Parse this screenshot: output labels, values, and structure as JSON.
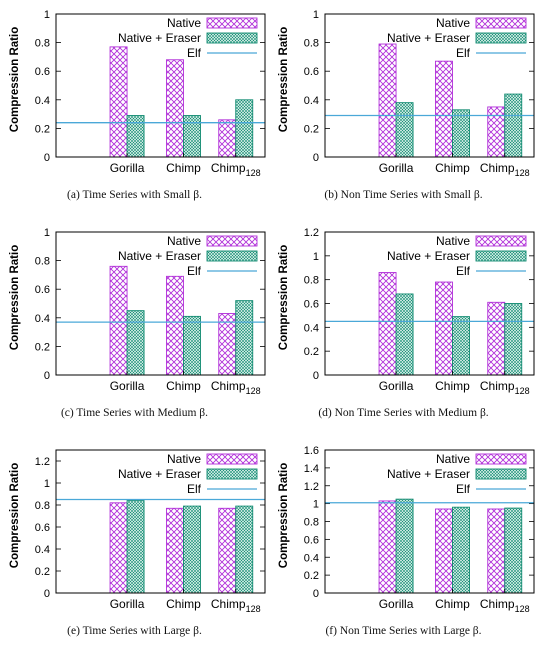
{
  "figure": {
    "colors": {
      "native": "#b12fd9",
      "eraser": "#0f8a70",
      "eraser_fill": "#e6f6f1",
      "elf": "#4aa8d8"
    }
  },
  "chart_data": [
    {
      "type": "bar",
      "caption": "(a)  Time Series with Small β.",
      "categories": [
        "Gorilla",
        "Chimp",
        "Chimp128"
      ],
      "ylabel": "Compression Ratio",
      "ylim": [
        0,
        1
      ],
      "yticks": [
        0,
        0.2,
        0.4,
        0.6,
        0.8,
        1
      ],
      "ytick_labels": [
        "0",
        "0.2",
        "0.4",
        "0.6",
        "0.8",
        "1"
      ],
      "legend": "top-right",
      "series": [
        {
          "name": "Native",
          "values": [
            0.77,
            0.68,
            0.26
          ]
        },
        {
          "name": "Native + Eraser",
          "values": [
            0.29,
            0.29,
            0.4
          ]
        },
        {
          "name": "Elf",
          "value": 0.24
        }
      ]
    },
    {
      "type": "bar",
      "caption": "(b)  Non Time Series with Small β.",
      "categories": [
        "Gorilla",
        "Chimp",
        "Chimp128"
      ],
      "ylabel": "Compression Ratio",
      "ylim": [
        0,
        1
      ],
      "yticks": [
        0,
        0.2,
        0.4,
        0.6,
        0.8,
        1
      ],
      "ytick_labels": [
        "0",
        "0.2",
        "0.4",
        "0.6",
        "0.8",
        "1"
      ],
      "legend": "top-right",
      "series": [
        {
          "name": "Native",
          "values": [
            0.79,
            0.67,
            0.35
          ]
        },
        {
          "name": "Native + Eraser",
          "values": [
            0.38,
            0.33,
            0.44
          ]
        },
        {
          "name": "Elf",
          "value": 0.29
        }
      ]
    },
    {
      "type": "bar",
      "caption": "(c)  Time Series with Medium β.",
      "categories": [
        "Gorilla",
        "Chimp",
        "Chimp128"
      ],
      "ylabel": "Compression Ratio",
      "ylim": [
        0,
        1
      ],
      "yticks": [
        0,
        0.2,
        0.4,
        0.6,
        0.8,
        1
      ],
      "ytick_labels": [
        "0",
        "0.2",
        "0.4",
        "0.6",
        "0.8",
        "1"
      ],
      "legend": "top-right",
      "series": [
        {
          "name": "Native",
          "values": [
            0.76,
            0.69,
            0.43
          ]
        },
        {
          "name": "Native + Eraser",
          "values": [
            0.45,
            0.41,
            0.52
          ]
        },
        {
          "name": "Elf",
          "value": 0.37
        }
      ]
    },
    {
      "type": "bar",
      "caption": "(d)  Non Time Series with Medium β.",
      "categories": [
        "Gorilla",
        "Chimp",
        "Chimp128"
      ],
      "ylabel": "Compression Ratio",
      "ylim": [
        0,
        1.2
      ],
      "yticks": [
        0,
        0.2,
        0.4,
        0.6,
        0.8,
        1,
        1.2
      ],
      "ytick_labels": [
        "0",
        "0.2",
        "0.4",
        "0.6",
        "0.8",
        "1",
        "1.2"
      ],
      "legend": "top-right",
      "series": [
        {
          "name": "Native",
          "values": [
            0.86,
            0.78,
            0.61
          ]
        },
        {
          "name": "Native + Eraser",
          "values": [
            0.68,
            0.49,
            0.6
          ]
        },
        {
          "name": "Elf",
          "value": 0.45
        }
      ]
    },
    {
      "type": "bar",
      "caption": "(e)  Time Series with Large β.",
      "categories": [
        "Gorilla",
        "Chimp",
        "Chimp128"
      ],
      "ylabel": "Compression Ratio",
      "ylim": [
        0,
        1.3
      ],
      "yticks": [
        0,
        0.2,
        0.4,
        0.6,
        0.8,
        1,
        1.2
      ],
      "ytick_labels": [
        "0",
        "0.2",
        "0.4",
        "0.6",
        "0.8",
        "1",
        "1.2"
      ],
      "legend": "top-right",
      "series": [
        {
          "name": "Native",
          "values": [
            0.82,
            0.77,
            0.77
          ]
        },
        {
          "name": "Native + Eraser",
          "values": [
            0.84,
            0.79,
            0.79
          ]
        },
        {
          "name": "Elf",
          "value": 0.85
        }
      ]
    },
    {
      "type": "bar",
      "caption": "(f)  Non Time Series with Large β.",
      "categories": [
        "Gorilla",
        "Chimp",
        "Chimp128"
      ],
      "ylabel": "Compression Ratio",
      "ylim": [
        0,
        1.6
      ],
      "yticks": [
        0,
        0.2,
        0.4,
        0.6,
        0.8,
        1,
        1.2,
        1.4,
        1.6
      ],
      "ytick_labels": [
        "0",
        "0.2",
        "0.4",
        "0.6",
        "0.8",
        "1",
        "1.2",
        "1.4",
        "1.6"
      ],
      "legend": "top-right",
      "series": [
        {
          "name": "Native",
          "values": [
            1.03,
            0.94,
            0.94
          ]
        },
        {
          "name": "Native + Eraser",
          "values": [
            1.05,
            0.96,
            0.95
          ]
        },
        {
          "name": "Elf",
          "value": 1.01
        }
      ]
    }
  ]
}
